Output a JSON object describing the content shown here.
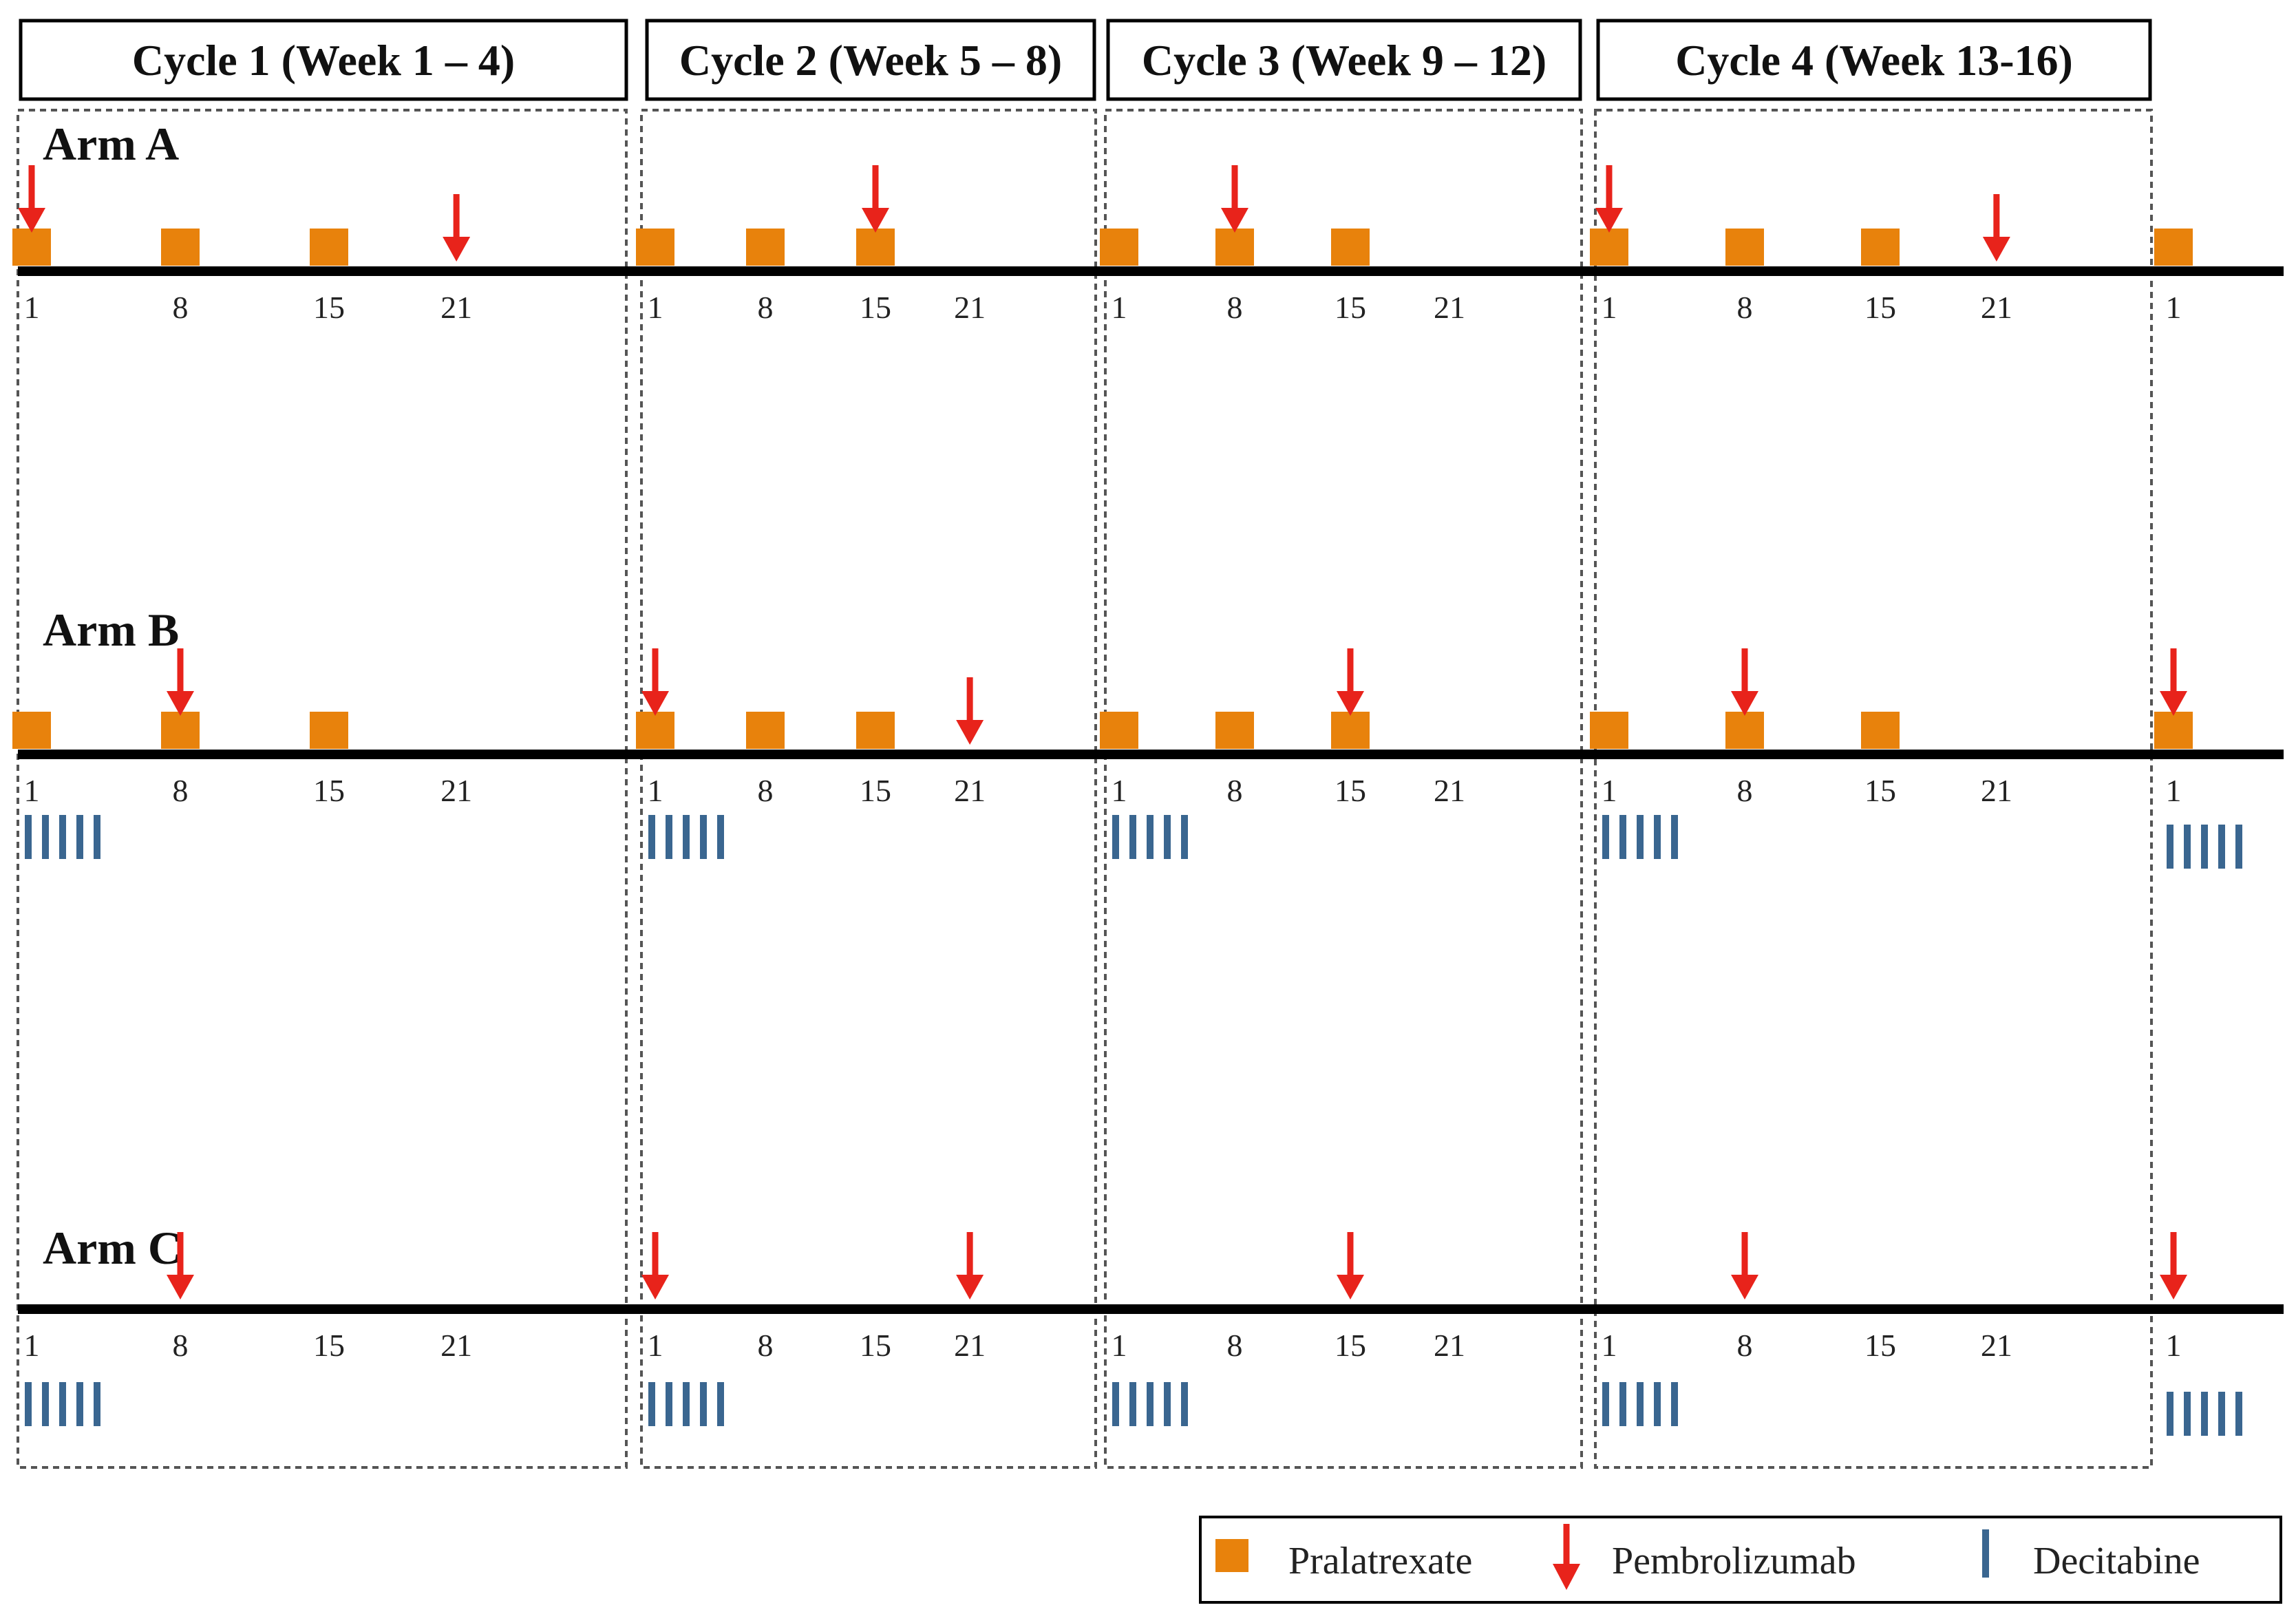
{
  "colors": {
    "pralatrexate": "#E8820C",
    "pembrolizumab": "#E8231B",
    "decitabine": "#3A6690",
    "axis": "#000000",
    "frame": "#555555"
  },
  "cycles": [
    {
      "label": "Cycle 1 (Week 1 – 4)"
    },
    {
      "label": "Cycle 2 (Week 5 – 8)"
    },
    {
      "label": "Cycle 3 (Week 9 – 12)"
    },
    {
      "label": "Cycle 4 (Week 13-16)"
    }
  ],
  "day_labels": [
    "1",
    "8",
    "15",
    "21"
  ],
  "next_cycle_day_label": "1",
  "arms": [
    {
      "name": "Arm A",
      "pralatrexate_days": [
        [
          1,
          8,
          15
        ],
        [
          1,
          8,
          15
        ],
        [
          1,
          8,
          15
        ],
        [
          1,
          8,
          15
        ]
      ],
      "pembrolizumab_days": [
        [
          1,
          21
        ],
        [
          15
        ],
        [
          8
        ],
        [
          1,
          21
        ]
      ],
      "decitabine_days": [
        [],
        [],
        [],
        []
      ],
      "next_cycle": {
        "pralatrexate": true,
        "pembrolizumab": false,
        "decitabine": false
      }
    },
    {
      "name": "Arm B",
      "pralatrexate_days": [
        [
          1,
          8,
          15
        ],
        [
          1,
          8,
          15
        ],
        [
          1,
          8,
          15
        ],
        [
          1,
          8,
          15
        ]
      ],
      "pembrolizumab_days": [
        [
          8
        ],
        [
          1,
          21
        ],
        [
          15
        ],
        [
          8
        ]
      ],
      "decitabine_days": [
        [
          1,
          2,
          3,
          4,
          5
        ],
        [
          1,
          2,
          3,
          4,
          5
        ],
        [
          1,
          2,
          3,
          4,
          5
        ],
        [
          1,
          2,
          3,
          4,
          5
        ]
      ],
      "next_cycle": {
        "pralatrexate": true,
        "pembrolizumab": true,
        "decitabine": true
      }
    },
    {
      "name": "Arm C",
      "pralatrexate_days": [
        [],
        [],
        [],
        []
      ],
      "pembrolizumab_days": [
        [
          8
        ],
        [
          1,
          21
        ],
        [
          15
        ],
        [
          8
        ]
      ],
      "decitabine_days": [
        [
          1,
          2,
          3,
          4,
          5
        ],
        [
          1,
          2,
          3,
          4,
          5
        ],
        [
          1,
          2,
          3,
          4,
          5
        ],
        [
          1,
          2,
          3,
          4,
          5
        ]
      ],
      "next_cycle": {
        "pralatrexate": false,
        "pembrolizumab": true,
        "decitabine": true
      }
    }
  ],
  "legend": [
    {
      "key": "pralatrexate",
      "label": "Pralatrexate",
      "icon": "orange-square-icon"
    },
    {
      "key": "pembrolizumab",
      "label": "Pembrolizumab",
      "icon": "red-down-arrow-icon"
    },
    {
      "key": "decitabine",
      "label": "Decitabine",
      "icon": "blue-bar-icon"
    }
  ]
}
